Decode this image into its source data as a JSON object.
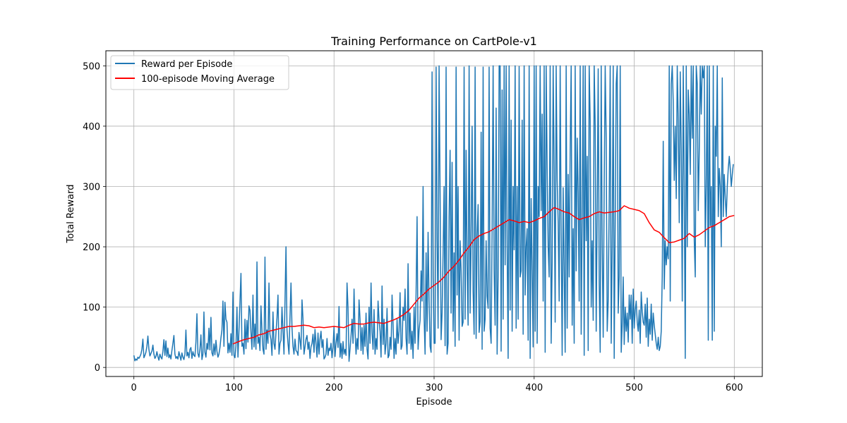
{
  "chart_data": {
    "type": "line",
    "title": "Training Performance on CartPole-v1",
    "xlabel": "Episode",
    "ylabel": "Total Reward",
    "xlim": [
      -28,
      628
    ],
    "ylim": [
      -15,
      525
    ],
    "xticks": [
      0,
      100,
      200,
      300,
      400,
      500,
      600
    ],
    "yticks": [
      0,
      100,
      200,
      300,
      400,
      500
    ],
    "grid": true,
    "legend_position": "top-left",
    "series": [
      {
        "name": "Reward per Episode",
        "color": "#1f77b4",
        "x_start": 0,
        "x_step": 1,
        "values": [
          20,
          11,
          14,
          12,
          17,
          15,
          18,
          22,
          30,
          47,
          16,
          20,
          25,
          35,
          52,
          30,
          19,
          23,
          27,
          37,
          22,
          15,
          18,
          26,
          18,
          12,
          22,
          17,
          14,
          27,
          46,
          20,
          44,
          18,
          32,
          16,
          21,
          14,
          28,
          40,
          53,
          22,
          15,
          18,
          14,
          26,
          19,
          12,
          24,
          17,
          13,
          22,
          62,
          19,
          25,
          16,
          30,
          33,
          15,
          26,
          20,
          18,
          42,
          89,
          23,
          17,
          30,
          54,
          13,
          22,
          92,
          25,
          17,
          40,
          30,
          65,
          29,
          83,
          24,
          19,
          39,
          21,
          45,
          27,
          17,
          22,
          33,
          49,
          62,
          110,
          35,
          108,
          80,
          75,
          24,
          40,
          25,
          56,
          20,
          125,
          20,
          16,
          36,
          100,
          17,
          60,
          108,
          156,
          35,
          40,
          22,
          80,
          31,
          78,
          42,
          102,
          95,
          58,
          30,
          120,
          34,
          72,
          30,
          175,
          40,
          50,
          28,
          102,
          60,
          30,
          22,
          183,
          30,
          62,
          40,
          140,
          55,
          46,
          20,
          92,
          40,
          30,
          58,
          82,
          120,
          22,
          40,
          45,
          100,
          60,
          22,
          110,
          200,
          62,
          40,
          22,
          84,
          140,
          66,
          35,
          22,
          47,
          28,
          26,
          20,
          58,
          45,
          30,
          112,
          80,
          22,
          34,
          47,
          53,
          30,
          42,
          15,
          34,
          40,
          55,
          25,
          63,
          40,
          17,
          57,
          22,
          47,
          60,
          33,
          46,
          14,
          17,
          22,
          48,
          20,
          32,
          28,
          40,
          16,
          34,
          67,
          18,
          40,
          56,
          33,
          101,
          17,
          40,
          15,
          43,
          22,
          30,
          20,
          140,
          98,
          10,
          30,
          52,
          80,
          40,
          130,
          60,
          22,
          48,
          30,
          112,
          80,
          28,
          66,
          22,
          70,
          35,
          90,
          30,
          14,
          100,
          40,
          140,
          58,
          30,
          96,
          22,
          48,
          30,
          110,
          78,
          60,
          17,
          135,
          38,
          80,
          22,
          40,
          98,
          16,
          20,
          50,
          30,
          120,
          72,
          15,
          48,
          22,
          80,
          40,
          60,
          124,
          30,
          36,
          100,
          78,
          130,
          48,
          22,
          172,
          40,
          90,
          30,
          60,
          15,
          100,
          40,
          122,
          250,
          30,
          62,
          78,
          160,
          110,
          300,
          84,
          22,
          190,
          60,
          224,
          110,
          35,
          25,
          490,
          150,
          40,
          40,
          498,
          215,
          65,
          500,
          290,
          46,
          90,
          190,
          300,
          36,
          498,
          22,
          40,
          250,
          360,
          90,
          340,
          60,
          190,
          35,
          498,
          120,
          300,
          45,
          210,
          160,
          68,
          75,
          498,
          80,
          360,
          170,
          70,
          500,
          90,
          210,
          400,
          125,
          55,
          498,
          48,
          220,
          270,
          58,
          76,
          390,
          30,
          498,
          60,
          80,
          210,
          118,
          98,
          498,
          65,
          40,
          230,
          500,
          162,
          70,
          430,
          22,
          150,
          500,
          500,
          27,
          460,
          80,
          500,
          170,
          500,
          200,
          15,
          500,
          95,
          410,
          60,
          300,
          195,
          500,
          65,
          300,
          80,
          499,
          150,
          160,
          410,
          55,
          500,
          120,
          200,
          230,
          45,
          500,
          15,
          280,
          160,
          34,
          500,
          60,
          500,
          40,
          300,
          250,
          500,
          260,
          420,
          110,
          500,
          25,
          500,
          330,
          200,
          150,
          500,
          40,
          175,
          500,
          330,
          75,
          500,
          310,
          240,
          110,
          500,
          220,
          20,
          298,
          160,
          25,
          500,
          65,
          320,
          150,
          360,
          500,
          70,
          230,
          40,
          500,
          160,
          380,
          290,
          110,
          500,
          55,
          250,
          500,
          20,
          500,
          210,
          350,
          28,
          500,
          410,
          100,
          210,
          78,
          500,
          400,
          60,
          260,
          495,
          140,
          25,
          500,
          200,
          50,
          300,
          500,
          380,
          60,
          110,
          270,
          500,
          40,
          200,
          500,
          15,
          240,
          470,
          500,
          90,
          150,
          500,
          25,
          70,
          150,
          38,
          100,
          60,
          90,
          42,
          120,
          80,
          120,
          40,
          130,
          65,
          95,
          110,
          75,
          60,
          95,
          40,
          125,
          92,
          75,
          70,
          105,
          50,
          115,
          35,
          80,
          55,
          105,
          45,
          90,
          70,
          55,
          40,
          30,
          50,
          28,
          35,
          60,
          150,
          375,
          130,
          210,
          170,
          200,
          180,
          500,
          110,
          470,
          500,
          440,
          310,
          400,
          280,
          500,
          410,
          240,
          490,
          360,
          110,
          500,
          300,
          15,
          500,
          200,
          460,
          420,
          320,
          500,
          380,
          500,
          210,
          150,
          500,
          470,
          260,
          360,
          500,
          420,
          500,
          480,
          500,
          200,
          300,
          500,
          45,
          500,
          235,
          300,
          45,
          500,
          60,
          400,
          350,
          500,
          250,
          330,
          300,
          200,
          480,
          250,
          320,
          280,
          250,
          300,
          330,
          350,
          330,
          300,
          320,
          337
        ]
      },
      {
        "name": "100-episode Moving Average",
        "color": "#ff0000",
        "points": [
          [
            99,
            39
          ],
          [
            105,
            43
          ],
          [
            110,
            46
          ],
          [
            115,
            48
          ],
          [
            120,
            50
          ],
          [
            125,
            54
          ],
          [
            130,
            56
          ],
          [
            135,
            60
          ],
          [
            140,
            62
          ],
          [
            145,
            64
          ],
          [
            150,
            66
          ],
          [
            155,
            68
          ],
          [
            160,
            68
          ],
          [
            165,
            69
          ],
          [
            170,
            70
          ],
          [
            175,
            69
          ],
          [
            180,
            66
          ],
          [
            185,
            67
          ],
          [
            190,
            66
          ],
          [
            195,
            67
          ],
          [
            200,
            68
          ],
          [
            205,
            67
          ],
          [
            210,
            66
          ],
          [
            215,
            70
          ],
          [
            220,
            73
          ],
          [
            225,
            72
          ],
          [
            230,
            72
          ],
          [
            235,
            74
          ],
          [
            240,
            75
          ],
          [
            245,
            74
          ],
          [
            250,
            73
          ],
          [
            255,
            76
          ],
          [
            260,
            79
          ],
          [
            265,
            83
          ],
          [
            270,
            88
          ],
          [
            275,
            95
          ],
          [
            280,
            105
          ],
          [
            285,
            115
          ],
          [
            290,
            122
          ],
          [
            295,
            130
          ],
          [
            300,
            136
          ],
          [
            305,
            142
          ],
          [
            310,
            150
          ],
          [
            315,
            160
          ],
          [
            320,
            168
          ],
          [
            325,
            178
          ],
          [
            330,
            190
          ],
          [
            335,
            200
          ],
          [
            340,
            212
          ],
          [
            345,
            218
          ],
          [
            350,
            222
          ],
          [
            355,
            225
          ],
          [
            360,
            230
          ],
          [
            365,
            235
          ],
          [
            370,
            240
          ],
          [
            375,
            245
          ],
          [
            380,
            243
          ],
          [
            385,
            240
          ],
          [
            390,
            242
          ],
          [
            395,
            240
          ],
          [
            400,
            243
          ],
          [
            405,
            247
          ],
          [
            410,
            250
          ],
          [
            415,
            258
          ],
          [
            420,
            265
          ],
          [
            425,
            262
          ],
          [
            430,
            258
          ],
          [
            435,
            256
          ],
          [
            440,
            250
          ],
          [
            445,
            245
          ],
          [
            450,
            248
          ],
          [
            455,
            250
          ],
          [
            460,
            255
          ],
          [
            465,
            258
          ],
          [
            470,
            256
          ],
          [
            475,
            257
          ],
          [
            480,
            258
          ],
          [
            485,
            260
          ],
          [
            490,
            268
          ],
          [
            495,
            264
          ],
          [
            500,
            262
          ],
          [
            505,
            260
          ],
          [
            510,
            255
          ],
          [
            515,
            240
          ],
          [
            520,
            228
          ],
          [
            525,
            224
          ],
          [
            530,
            215
          ],
          [
            535,
            207
          ],
          [
            540,
            208
          ],
          [
            545,
            211
          ],
          [
            550,
            214
          ],
          [
            555,
            222
          ],
          [
            560,
            216
          ],
          [
            565,
            220
          ],
          [
            570,
            226
          ],
          [
            575,
            232
          ],
          [
            580,
            235
          ],
          [
            585,
            240
          ],
          [
            590,
            245
          ],
          [
            595,
            250
          ],
          [
            600,
            252
          ]
        ]
      }
    ]
  }
}
